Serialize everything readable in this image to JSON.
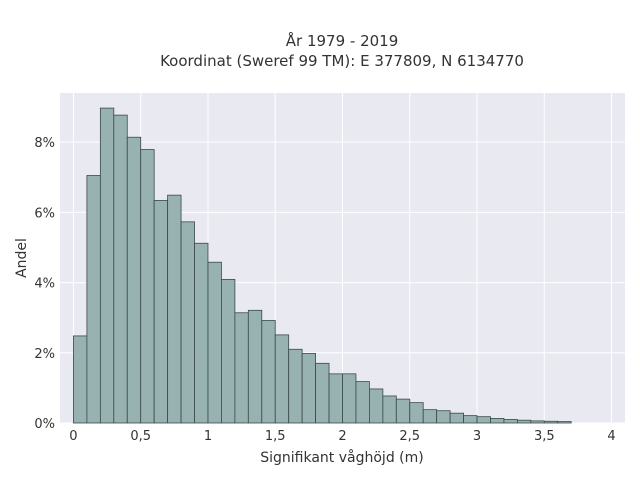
{
  "chart_data": {
    "type": "bar",
    "title_lines": [
      "År 1979 - 2019",
      "Koordinat (Sweref 99 TM): E 377809, N 6134770"
    ],
    "xlabel": "Signifikant våghöjd (m)",
    "ylabel": "Andel",
    "bin_width": 0.1,
    "x_range": [
      -0.1,
      4.1
    ],
    "y_range": [
      0,
      9.4
    ],
    "x_ticks": [
      0,
      0.5,
      1,
      1.5,
      2,
      2.5,
      3,
      3.5,
      4
    ],
    "x_tick_labels": [
      "0",
      "0,5",
      "1",
      "1,5",
      "2",
      "2,5",
      "3",
      "3,5",
      "4"
    ],
    "y_ticks": [
      0,
      2,
      4,
      6,
      8
    ],
    "y_tick_labels": [
      "0%",
      "2%",
      "4%",
      "6%",
      "8%"
    ],
    "bin_starts": [
      0.0,
      0.1,
      0.2,
      0.3,
      0.4,
      0.5,
      0.6,
      0.7,
      0.8,
      0.9,
      1.0,
      1.1,
      1.2,
      1.3,
      1.4,
      1.5,
      1.6,
      1.7,
      1.8,
      1.9,
      2.0,
      2.1,
      2.2,
      2.3,
      2.4,
      2.5,
      2.6,
      2.7,
      2.8,
      2.9,
      3.0,
      3.1,
      3.2,
      3.3,
      3.4,
      3.5,
      3.6
    ],
    "values": [
      2.48,
      7.05,
      8.97,
      8.77,
      8.14,
      7.79,
      6.34,
      6.49,
      5.73,
      5.12,
      4.58,
      4.09,
      3.14,
      3.21,
      2.92,
      2.51,
      2.1,
      1.98,
      1.7,
      1.4,
      1.4,
      1.18,
      0.97,
      0.77,
      0.68,
      0.58,
      0.38,
      0.35,
      0.28,
      0.21,
      0.18,
      0.13,
      0.1,
      0.08,
      0.06,
      0.05,
      0.04
    ],
    "grid": true,
    "colors": {
      "bar_fill": "#97b2b0",
      "bar_stroke": "#3a4a48",
      "plot_bg": "#e9e9f1",
      "grid": "#ffffff"
    }
  }
}
